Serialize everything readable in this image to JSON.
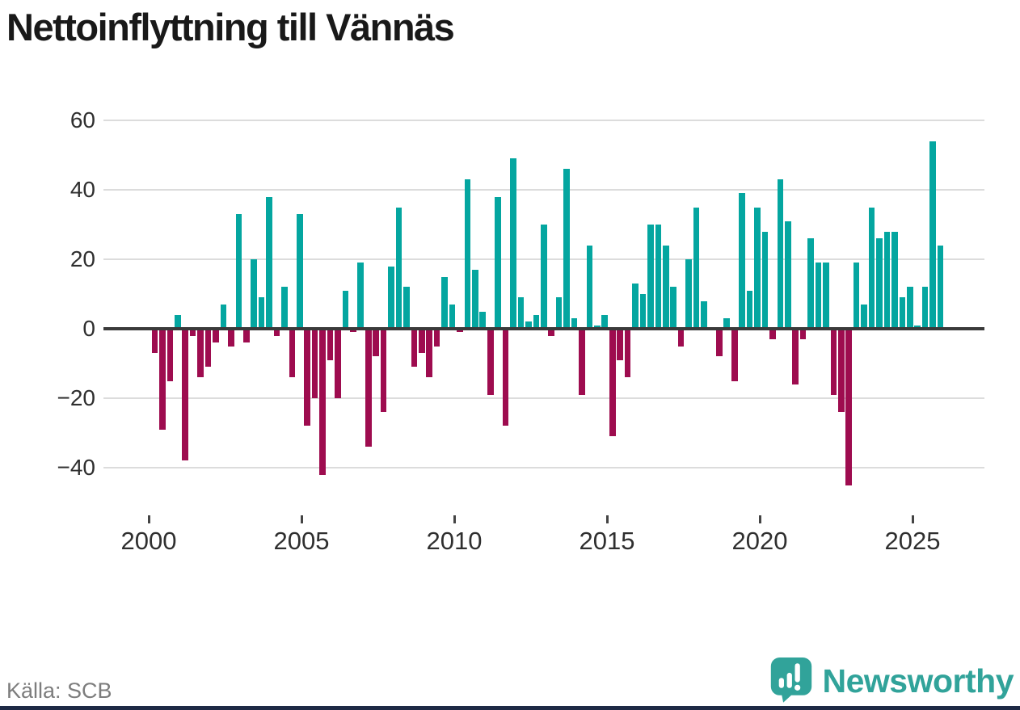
{
  "title": "Nettoinflyttning till Vännäs",
  "source": "Källa: SCB",
  "brand": {
    "name": "Newsworthy",
    "icon": "newsworthy-speech-bubble-chart-icon"
  },
  "colors": {
    "positive": "#04a6a0",
    "negative": "#9e0c4f",
    "grid": "#dcdcdc",
    "zero_line": "#3a3a3a",
    "title_text": "#191919",
    "axis_text": "#2f2f2f",
    "source_text": "#7d7d7d",
    "brand_teal": "#31a39a",
    "footer_bar": "#1e2a45"
  },
  "chart_data": {
    "type": "bar",
    "title": "Nettoinflyttning till Vännäs",
    "frequency": "quarterly",
    "start_period": "2000Q1",
    "end_period": "2025Q4",
    "grid": true,
    "legend": false,
    "ylim": [
      -50,
      62
    ],
    "y_ticks": [
      60,
      40,
      20,
      0,
      -20,
      -40
    ],
    "y_tick_labels": [
      "60",
      "40",
      "20",
      "0",
      "−20",
      "−40"
    ],
    "x_tick_years": [
      2000,
      2005,
      2010,
      2015,
      2020,
      2025
    ],
    "x_tick_labels": [
      "2000",
      "2005",
      "2010",
      "2015",
      "2020",
      "2025"
    ],
    "positive_color": "#04a6a0",
    "negative_color": "#9e0c4f",
    "years": [
      {
        "year": 2000,
        "q": [
          -7,
          -29,
          -15,
          4
        ]
      },
      {
        "year": 2001,
        "q": [
          -38,
          -2,
          -14,
          -11
        ]
      },
      {
        "year": 2002,
        "q": [
          -4,
          7,
          -5,
          33
        ]
      },
      {
        "year": 2003,
        "q": [
          -4,
          20,
          9,
          38
        ]
      },
      {
        "year": 2004,
        "q": [
          -2,
          12,
          -14,
          33
        ]
      },
      {
        "year": 2005,
        "q": [
          -28,
          -20,
          -42,
          -9
        ]
      },
      {
        "year": 2006,
        "q": [
          -20,
          11,
          -1,
          19
        ]
      },
      {
        "year": 2007,
        "q": [
          -34,
          -8,
          -24,
          18
        ]
      },
      {
        "year": 2008,
        "q": [
          35,
          12,
          -11,
          -7
        ]
      },
      {
        "year": 2009,
        "q": [
          -14,
          -5,
          15,
          7
        ]
      },
      {
        "year": 2010,
        "q": [
          -1,
          43,
          17,
          5
        ]
      },
      {
        "year": 2011,
        "q": [
          -19,
          38,
          -28,
          49
        ]
      },
      {
        "year": 2012,
        "q": [
          9,
          2,
          4,
          30
        ]
      },
      {
        "year": 2013,
        "q": [
          -2,
          9,
          46,
          3
        ]
      },
      {
        "year": 2014,
        "q": [
          -19,
          24,
          1,
          4
        ]
      },
      {
        "year": 2015,
        "q": [
          -31,
          -9,
          -14,
          13
        ]
      },
      {
        "year": 2016,
        "q": [
          10,
          30,
          30,
          24
        ]
      },
      {
        "year": 2017,
        "q": [
          12,
          -5,
          20,
          35
        ]
      },
      {
        "year": 2018,
        "q": [
          8,
          0,
          -8,
          3
        ]
      },
      {
        "year": 2019,
        "q": [
          -15,
          39,
          11,
          35
        ]
      },
      {
        "year": 2020,
        "q": [
          28,
          -3,
          43,
          31
        ]
      },
      {
        "year": 2021,
        "q": [
          -16,
          -3,
          26,
          19
        ]
      },
      {
        "year": 2022,
        "q": [
          19,
          -19,
          -24,
          -45
        ]
      },
      {
        "year": 2023,
        "q": [
          19,
          7,
          35,
          26
        ]
      },
      {
        "year": 2024,
        "q": [
          28,
          28,
          9,
          12
        ]
      },
      {
        "year": 2025,
        "q": [
          1,
          12,
          54,
          24
        ]
      }
    ]
  }
}
